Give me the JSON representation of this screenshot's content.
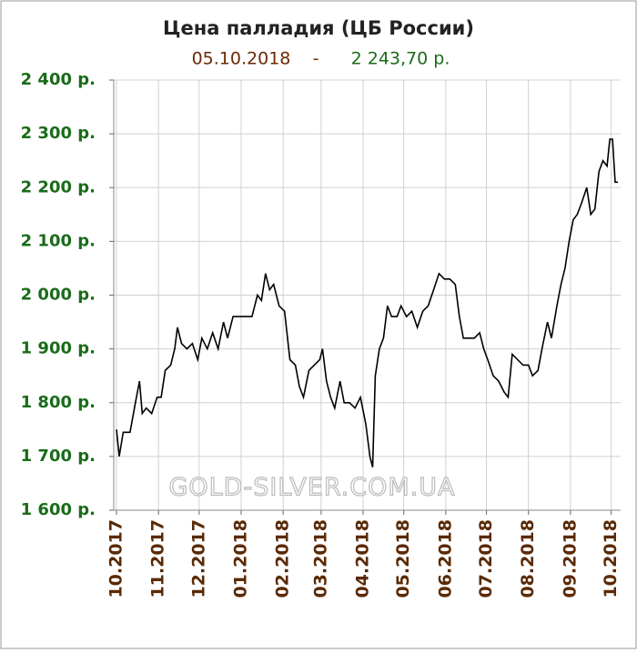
{
  "chart_data": {
    "type": "line",
    "title": "Цена палладия (ЦБ России)",
    "subtitle_date": "05.10.2018",
    "subtitle_separator": "-",
    "subtitle_price": "2 243,70 р.",
    "watermark": "GOLD-SILVER.COM.UA",
    "x": [
      0,
      2,
      5,
      10,
      14,
      17,
      19,
      22,
      26,
      30,
      33,
      36,
      40,
      43,
      45,
      48,
      52,
      56,
      60,
      63,
      67,
      71,
      75,
      79,
      82,
      86,
      92,
      100,
      104,
      107,
      110,
      113,
      116,
      120,
      124,
      128,
      132,
      135,
      138,
      142,
      146,
      150,
      152,
      155,
      158,
      161,
      165,
      168,
      172,
      176,
      180,
      184,
      187,
      189,
      191,
      194,
      197,
      200,
      203,
      207,
      210,
      214,
      218,
      222,
      226,
      230,
      234,
      238,
      242,
      246,
      250,
      253,
      256,
      260,
      264,
      268,
      271,
      274,
      278,
      282,
      286,
      289,
      292,
      296,
      300,
      304,
      307,
      311,
      314,
      318,
      321,
      325,
      328,
      331,
      334,
      337,
      340,
      343,
      347,
      350,
      353,
      356,
      359,
      362,
      364,
      366,
      368,
      370
    ],
    "series": [
      {
        "color": "#000000",
        "values": [
          1750,
          1700,
          1745,
          1745,
          1800,
          1840,
          1780,
          1790,
          1780,
          1810,
          1810,
          1860,
          1870,
          1900,
          1940,
          1910,
          1900,
          1910,
          1880,
          1920,
          1900,
          1930,
          1900,
          1950,
          1920,
          1960,
          1960,
          1960,
          2000,
          1990,
          2040,
          2010,
          2020,
          1980,
          1970,
          1880,
          1870,
          1830,
          1810,
          1860,
          1870,
          1880,
          1900,
          1840,
          1810,
          1790,
          1840,
          1800,
          1800,
          1790,
          1810,
          1760,
          1700,
          1680,
          1850,
          1900,
          1920,
          1980,
          1960,
          1960,
          1980,
          1960,
          1970,
          1940,
          1970,
          1980,
          2010,
          2040,
          2030,
          2030,
          2020,
          1960,
          1920,
          1920,
          1920,
          1930,
          1900,
          1880,
          1850,
          1840,
          1820,
          1810,
          1890,
          1880,
          1870,
          1870,
          1850,
          1860,
          1900,
          1950,
          1920,
          1980,
          2020,
          2050,
          2100,
          2140,
          2150,
          2170,
          2200,
          2150,
          2160,
          2230,
          2250,
          2240,
          2290,
          2290,
          2210,
          2210
        ]
      }
    ],
    "xlim": [
      -2,
      372
    ],
    "xticks": [
      {
        "value": 0,
        "label": "10.2017"
      },
      {
        "value": 31,
        "label": "11.2017"
      },
      {
        "value": 61,
        "label": "12.2017"
      },
      {
        "value": 92,
        "label": "01.2018"
      },
      {
        "value": 123,
        "label": "02.2018"
      },
      {
        "value": 151,
        "label": "03.2018"
      },
      {
        "value": 182,
        "label": "04.2018"
      },
      {
        "value": 212,
        "label": "05.2018"
      },
      {
        "value": 243,
        "label": "06.2018"
      },
      {
        "value": 273,
        "label": "07.2018"
      },
      {
        "value": 304,
        "label": "08.2018"
      },
      {
        "value": 335,
        "label": "09.2018"
      },
      {
        "value": 365,
        "label": "10.2018"
      }
    ],
    "ylim": [
      1600,
      2400
    ],
    "yticks": [
      {
        "value": 1600,
        "label": "1 600 р."
      },
      {
        "value": 1700,
        "label": "1 700 р."
      },
      {
        "value": 1800,
        "label": "1 800 р."
      },
      {
        "value": 1900,
        "label": "1 900 р."
      },
      {
        "value": 2000,
        "label": "2 000 р."
      },
      {
        "value": 2100,
        "label": "2 100 р."
      },
      {
        "value": 2200,
        "label": "2 200 р."
      },
      {
        "value": 2300,
        "label": "2 300 р."
      },
      {
        "value": 2400,
        "label": "2 400 р."
      }
    ],
    "grid": true
  }
}
